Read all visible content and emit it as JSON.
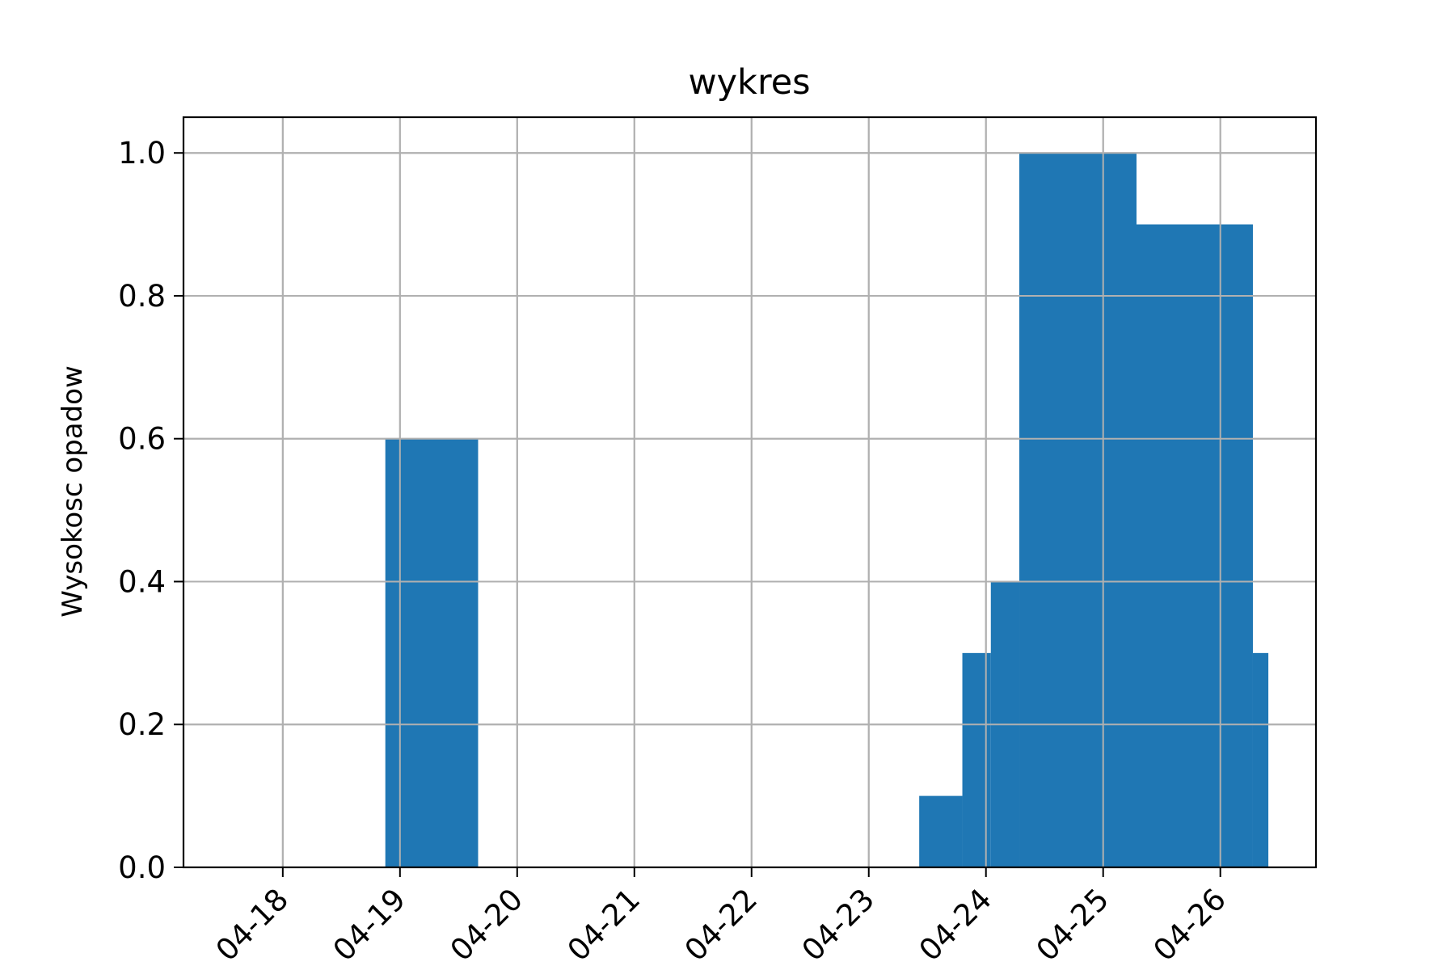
{
  "chart_data": {
    "type": "bar",
    "title": "wykres",
    "xlabel": "",
    "ylabel": "Wysokosc opadow",
    "x_tick_labels": [
      "04-18",
      "04-19",
      "04-20",
      "04-21",
      "04-22",
      "04-23",
      "04-24",
      "04-25",
      "04-26"
    ],
    "y_tick_labels": [
      "0.0",
      "0.2",
      "0.4",
      "0.6",
      "0.8",
      "1.0"
    ],
    "xlim": [
      "2019-04-17 03:40",
      "2019-04-26 19:35"
    ],
    "ylim": [
      0,
      1.05
    ],
    "grid": true,
    "bar_color": "#1f77b4",
    "bars": [
      {
        "start": "2019-04-18 21:00",
        "end": "2019-04-19 16:00",
        "value": 0.6
      },
      {
        "start": "2019-04-23 10:20",
        "end": "2019-04-23 19:10",
        "value": 0.1
      },
      {
        "start": "2019-04-23 19:10",
        "end": "2019-04-24 01:00",
        "value": 0.3
      },
      {
        "start": "2019-04-24 01:00",
        "end": "2019-04-24 06:50",
        "value": 0.4
      },
      {
        "start": "2019-04-24 06:50",
        "end": "2019-04-25 06:50",
        "value": 1.0
      },
      {
        "start": "2019-04-25 06:50",
        "end": "2019-04-26 06:40",
        "value": 0.9
      },
      {
        "start": "2019-04-26 06:40",
        "end": "2019-04-26 09:50",
        "value": 0.3
      }
    ]
  }
}
